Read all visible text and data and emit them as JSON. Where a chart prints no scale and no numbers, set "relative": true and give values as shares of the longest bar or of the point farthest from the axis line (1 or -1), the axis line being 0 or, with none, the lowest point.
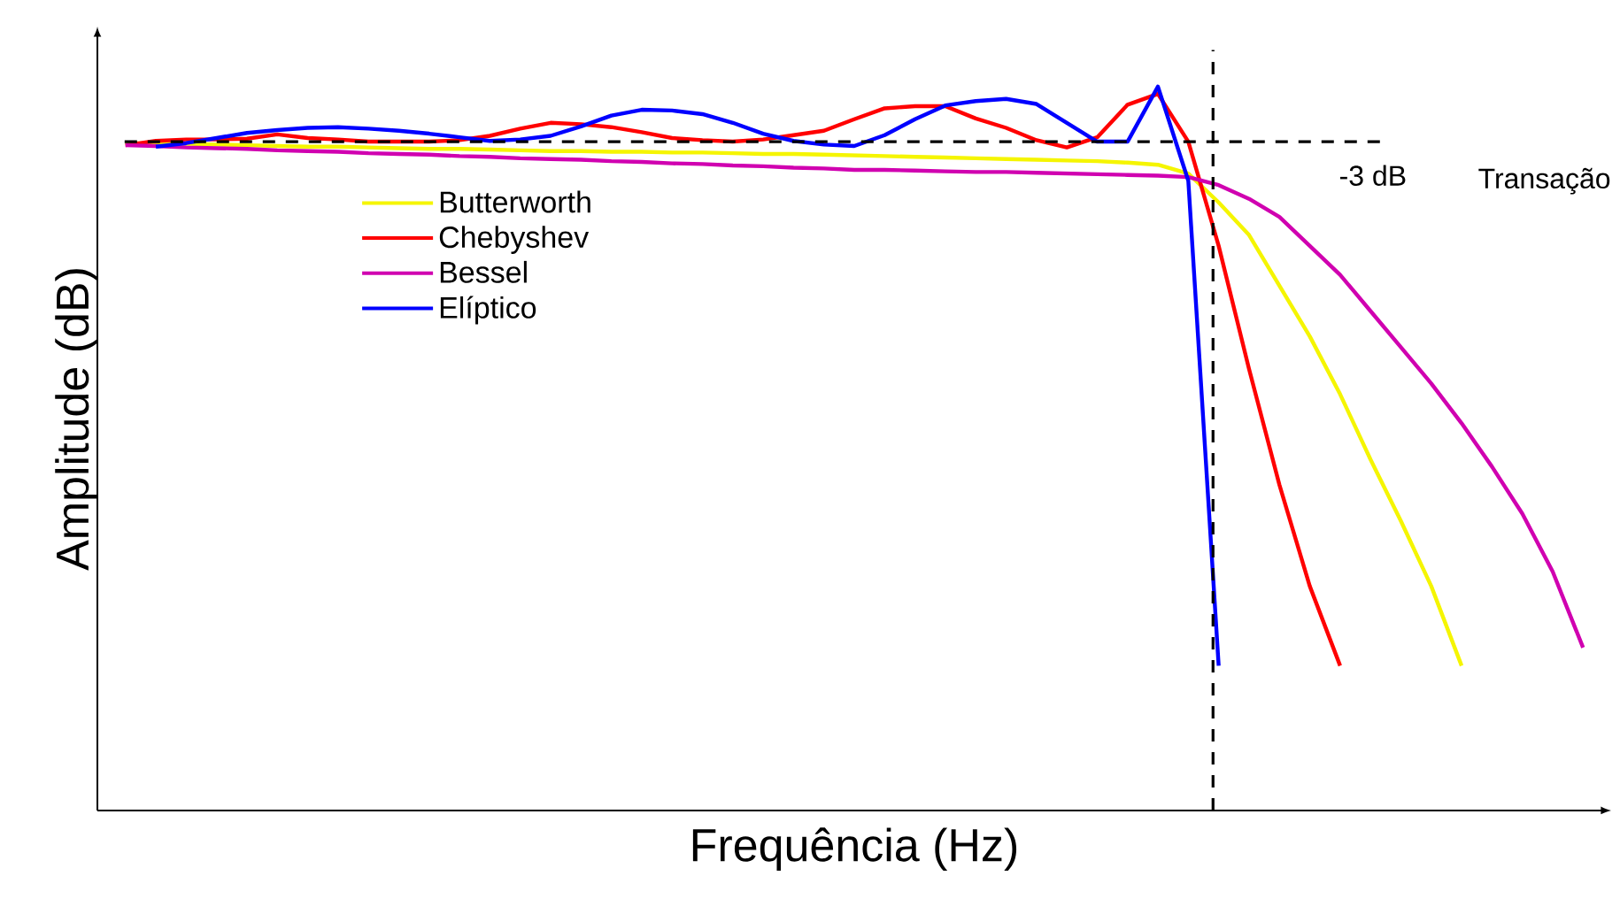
{
  "chart_data": {
    "type": "line",
    "relative": true,
    "xlabel": "Frequência (Hz)",
    "ylabel": "Amplitude (dB)",
    "tick_labels": false,
    "legend": "top left",
    "categories": [
      null,
      null,
      null,
      null,
      null,
      null,
      null,
      null,
      null,
      null,
      null,
      null,
      null,
      null,
      null,
      null,
      null,
      null,
      null,
      null,
      null,
      null,
      null,
      null,
      null,
      null,
      null,
      null,
      null,
      null,
      null,
      null,
      null,
      null,
      null,
      null,
      null,
      null,
      null,
      null,
      null,
      null,
      null,
      null,
      null,
      null,
      null,
      null,
      null
    ],
    "series": [
      {
        "name": "Butterworth",
        "color": "#f5f500",
        "values": [
          0.922,
          0.921,
          0.921,
          0.92,
          0.919,
          0.918,
          0.917,
          0.917,
          0.916,
          0.915,
          0.914,
          0.914,
          0.913,
          0.912,
          0.911,
          0.911,
          0.91,
          0.91,
          0.909,
          0.909,
          0.908,
          0.907,
          0.907,
          0.906,
          0.905,
          0.904,
          0.903,
          0.902,
          0.901,
          0.9,
          0.899,
          0.898,
          0.897,
          0.895,
          0.892,
          0.88,
          0.84,
          0.795,
          0.725,
          0.655,
          0.575,
          0.485,
          0.4,
          0.31,
          0.2,
          null,
          null,
          null,
          null
        ]
      },
      {
        "name": "Chebyshev",
        "color": "#ff0000",
        "values": [
          0.919,
          0.925,
          0.927,
          0.927,
          0.928,
          0.934,
          0.929,
          0.927,
          0.924,
          0.924,
          0.924,
          0.926,
          0.932,
          0.942,
          0.95,
          0.948,
          0.944,
          0.937,
          0.929,
          0.926,
          0.924,
          0.927,
          0.933,
          0.939,
          0.955,
          0.97,
          0.973,
          0.973,
          0.956,
          0.943,
          0.926,
          0.916,
          0.93,
          0.975,
          0.99,
          0.924,
          0.78,
          0.61,
          0.45,
          0.31,
          0.2,
          null,
          null,
          null,
          null,
          null,
          null,
          null,
          null
        ]
      },
      {
        "name": "Bessel",
        "color": "#d000b0",
        "values": [
          0.919,
          0.918,
          0.916,
          0.915,
          0.914,
          0.912,
          0.911,
          0.91,
          0.908,
          0.907,
          0.906,
          0.904,
          0.903,
          0.901,
          0.9,
          0.899,
          0.897,
          0.896,
          0.894,
          0.893,
          0.891,
          0.89,
          0.888,
          0.887,
          0.885,
          0.885,
          0.884,
          0.883,
          0.882,
          0.882,
          0.881,
          0.88,
          0.879,
          0.878,
          0.877,
          0.875,
          0.864,
          0.845,
          0.82,
          0.78,
          0.74,
          0.69,
          0.64,
          0.59,
          0.535,
          0.475,
          0.41,
          0.33,
          0.225
        ]
      },
      {
        "name": "Elíptico",
        "color": "#0000ff",
        "values": [
          null,
          0.917,
          0.922,
          0.929,
          0.936,
          0.94,
          0.943,
          0.944,
          0.942,
          0.939,
          0.935,
          0.93,
          0.925,
          0.927,
          0.932,
          0.945,
          0.96,
          0.968,
          0.967,
          0.962,
          0.95,
          0.935,
          0.925,
          0.92,
          0.918,
          0.933,
          0.955,
          0.974,
          0.98,
          0.983,
          0.976,
          0.95,
          0.924,
          0.924,
          1.0,
          0.87,
          0.2,
          null,
          null,
          null,
          null,
          null,
          null,
          null,
          null,
          null,
          null,
          null,
          null
        ]
      }
    ],
    "ref_lines": [
      {
        "axis": "y",
        "value": 0.924,
        "label": "-3 dB",
        "line_style": "dashed",
        "color": "#000000"
      }
    ],
    "annotations": [
      "Transação"
    ]
  }
}
